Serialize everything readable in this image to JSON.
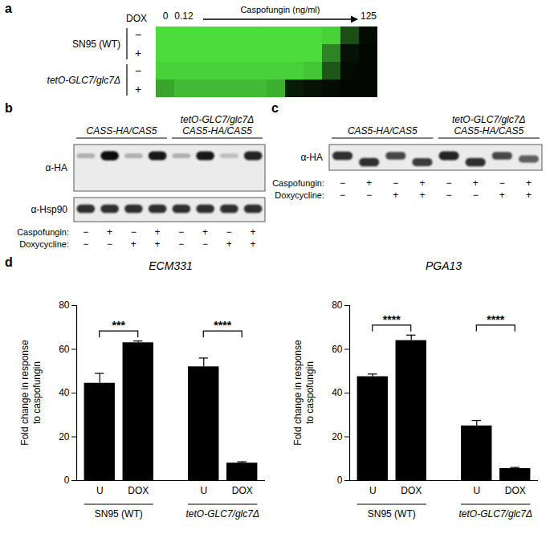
{
  "chart_data": [
    {
      "type": "heatmap",
      "panel": "a",
      "row_header": "DOX",
      "x_label": "Caspofungin (ng/ml)",
      "categories": [
        "0",
        "0.12",
        null,
        null,
        null,
        null,
        null,
        null,
        null,
        null,
        null,
        "125"
      ],
      "rows": [
        {
          "group": "SN95 (WT)",
          "label": "−",
          "values": [
            1,
            1,
            1,
            1,
            1,
            1,
            1,
            1,
            1,
            0.95,
            0.35,
            0.05
          ]
        },
        {
          "group": "SN95 (WT)",
          "label": "+",
          "values": [
            1,
            1,
            1,
            1,
            1,
            1,
            1,
            1,
            1,
            0.6,
            0.08,
            0.03
          ]
        },
        {
          "group": "tetO-GLC7/glc7Δ",
          "label": "−",
          "values": [
            0.95,
            0.95,
            0.95,
            0.95,
            0.95,
            0.95,
            0.95,
            0.95,
            0.9,
            0.4,
            0.05,
            0.03
          ]
        },
        {
          "group": "tetO-GLC7/glc7Δ",
          "label": "+",
          "values": [
            0.75,
            0.85,
            0.85,
            0.85,
            0.85,
            0.85,
            0.8,
            0.12,
            0.08,
            0.05,
            0.03,
            0.03
          ]
        }
      ],
      "zlim": [
        0,
        1
      ],
      "color": "#4cdc3c",
      "tick_labels": "x"
    },
    {
      "type": "bar",
      "panel": "d",
      "title": "ECM331",
      "ylabel": "Fold change in response to caspofungin",
      "categories": [
        "U",
        "DOX",
        "U",
        "DOX"
      ],
      "groups": [
        "SN95 (WT)",
        "SN95 (WT)",
        "tetO-GLC7/glc7Δ",
        "tetO-GLC7/glc7Δ"
      ],
      "values": [
        44.5,
        63,
        52,
        8
      ],
      "errors": [
        4.5,
        0.8,
        4,
        0.6
      ],
      "significance": [
        {
          "pair": [
            0,
            1
          ],
          "label": "***"
        },
        {
          "pair": [
            2,
            3
          ],
          "label": "****"
        }
      ],
      "color": "#000000",
      "ylim": [
        0,
        80
      ],
      "yticks": [
        0,
        20,
        40,
        60,
        80
      ]
    },
    {
      "type": "bar",
      "title": "PGA13",
      "ylabel": "Fold change in response to caspofungin",
      "categories": [
        "U",
        "DOX",
        "U",
        "DOX"
      ],
      "groups": [
        "SN95 (WT)",
        "SN95 (WT)",
        "tetO-GLC7/glc7Δ",
        "tetO-GLC7/glc7Δ"
      ],
      "values": [
        47.5,
        64,
        25,
        5.5
      ],
      "errors": [
        1.2,
        2.5,
        2.5,
        0.5
      ],
      "significance": [
        {
          "pair": [
            0,
            1
          ],
          "label": "****"
        },
        {
          "pair": [
            2,
            3
          ],
          "label": "****"
        }
      ],
      "color": "#000000",
      "ylim": [
        0,
        80
      ],
      "yticks": [
        0,
        20,
        40,
        60,
        80
      ]
    }
  ],
  "blots": [
    {
      "panel": "b",
      "groups": [
        {
          "lines": [
            "CASS-HA/CAS5"
          ],
          "lanes": 4
        },
        {
          "lines": [
            "tetO-GLC7/glc7Δ",
            "CAS5-HA/CAS5"
          ],
          "lanes": 4
        }
      ],
      "rows": [
        {
          "label": "α-HA",
          "bands": [
            0.25,
            0.95,
            0.25,
            0.9,
            0.25,
            0.9,
            0.2,
            0.85
          ]
        },
        {
          "label": "α-Hsp90",
          "bands": [
            0.8,
            0.8,
            0.8,
            0.8,
            0.8,
            0.8,
            0.8,
            0.8
          ]
        }
      ],
      "conditions": [
        {
          "label": "Caspofungin:",
          "signs": [
            "−",
            "+",
            "−",
            "+",
            "−",
            "+",
            "−",
            "+"
          ]
        },
        {
          "label": "Doxycycline:",
          "signs": [
            "−",
            "−",
            "+",
            "+",
            "−",
            "−",
            "+",
            "+"
          ]
        }
      ]
    },
    {
      "panel": "c",
      "groups": [
        {
          "lines": [
            "CAS5-HA/CAS5"
          ],
          "lanes": 4
        },
        {
          "lines": [
            "tetO-GLC7/glc7Δ",
            "CAS5-HA/CAS5"
          ],
          "lanes": 4
        }
      ],
      "rows": [
        {
          "label": "α-HA",
          "bands": [
            0.8,
            0.8,
            0.7,
            0.75,
            0.85,
            0.8,
            0.7,
            0.6
          ],
          "mobility": [
            0,
            1,
            0,
            1,
            0,
            1,
            0,
            0.5
          ]
        }
      ],
      "conditions": [
        {
          "label": "Caspofungin:",
          "signs": [
            "−",
            "+",
            "−",
            "+",
            "−",
            "+",
            "−",
            "+"
          ]
        },
        {
          "label": "Doxycycline:",
          "signs": [
            "−",
            "−",
            "+",
            "+",
            "−",
            "−",
            "+",
            "+"
          ]
        }
      ]
    }
  ]
}
